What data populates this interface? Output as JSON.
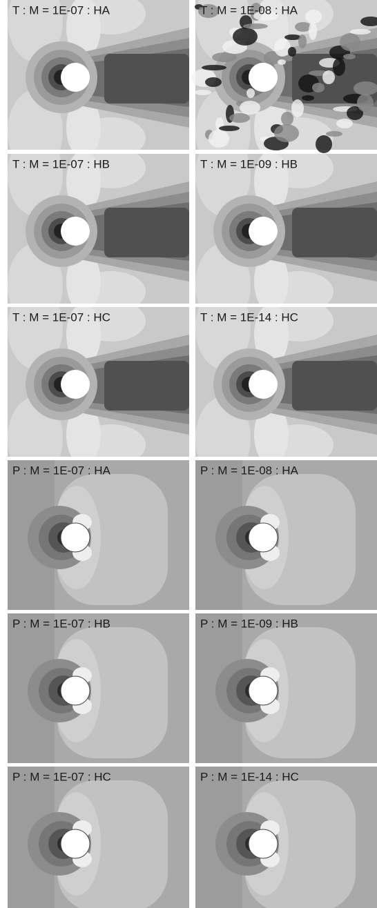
{
  "panels": [
    {
      "label": "T : M = 1E-07 : HA"
    },
    {
      "label": "T : M = 1E-08 : HA"
    },
    {
      "label": "T : M = 1E-07 : HB"
    },
    {
      "label": "T : M = 1E-09 : HB"
    },
    {
      "label": "T : M = 1E-07 : HC"
    },
    {
      "label": "T : M = 1E-14 : HC"
    },
    {
      "label": "P : M = 1E-07 : HA"
    },
    {
      "label": "P : M = 1E-08 : HA"
    },
    {
      "label": "P : M = 1E-07 : HB"
    },
    {
      "label": "P : M = 1E-09 : HB"
    },
    {
      "label": "P : M = 1E-07 : HC"
    },
    {
      "label": "P : M = 1E-14 : HC"
    }
  ]
}
